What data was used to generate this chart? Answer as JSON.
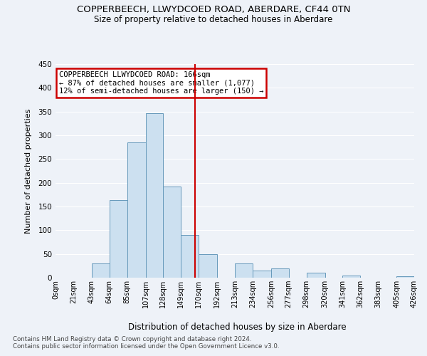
{
  "title": "COPPERBEECH, LLWYDCOED ROAD, ABERDARE, CF44 0TN",
  "subtitle": "Size of property relative to detached houses in Aberdare",
  "xlabel": "Distribution of detached houses by size in Aberdare",
  "ylabel": "Number of detached properties",
  "bin_edges": [
    0,
    21,
    43,
    64,
    85,
    107,
    128,
    149,
    170,
    192,
    213,
    234,
    256,
    277,
    298,
    320,
    341,
    362,
    383,
    405,
    426
  ],
  "bin_labels": [
    "0sqm",
    "21sqm",
    "43sqm",
    "64sqm",
    "85sqm",
    "107sqm",
    "128sqm",
    "149sqm",
    "170sqm",
    "192sqm",
    "213sqm",
    "234sqm",
    "256sqm",
    "277sqm",
    "298sqm",
    "320sqm",
    "341sqm",
    "362sqm",
    "383sqm",
    "405sqm",
    "426sqm"
  ],
  "counts": [
    0,
    0,
    30,
    163,
    285,
    347,
    192,
    90,
    50,
    0,
    30,
    15,
    20,
    0,
    10,
    0,
    5,
    0,
    0,
    3
  ],
  "bar_color": "#cce0f0",
  "bar_edge_color": "#6699bb",
  "vline_x": 166,
  "vline_color": "#cc0000",
  "ylim": [
    0,
    450
  ],
  "yticks": [
    0,
    50,
    100,
    150,
    200,
    250,
    300,
    350,
    400,
    450
  ],
  "annotation_title": "COPPERBEECH LLWYDCOED ROAD: 166sqm",
  "annotation_line1": "← 87% of detached houses are smaller (1,077)",
  "annotation_line2": "12% of semi-detached houses are larger (150) →",
  "annotation_box_color": "#ffffff",
  "annotation_box_edge": "#cc0000",
  "footer1": "Contains HM Land Registry data © Crown copyright and database right 2024.",
  "footer2": "Contains public sector information licensed under the Open Government Licence v3.0.",
  "background_color": "#eef2f8"
}
